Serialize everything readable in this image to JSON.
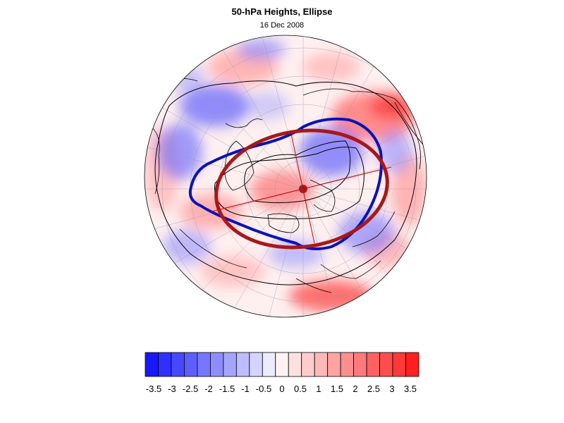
{
  "title": "50-hPa Heights, Ellipse",
  "date": "16 Dec 2008",
  "colors": {
    "blue_ellipse": "#0a12b8",
    "red_ellipse": "#a81818",
    "axis_line": "#cc0000",
    "coast": "#000000",
    "grid": "#9a9ab0"
  },
  "colorbar": {
    "colors": [
      "#1818ff",
      "#2f2fff",
      "#4747ff",
      "#5e5eff",
      "#7676ff",
      "#8d8dff",
      "#a5a5ff",
      "#bcbcff",
      "#d4d4ff",
      "#ececff",
      "#fff2f2",
      "#ffe0e0",
      "#ffcccc",
      "#ffb8b8",
      "#ffa3a3",
      "#ff8f8f",
      "#ff7a7a",
      "#ff6161",
      "#ff4d4d",
      "#ff3838",
      "#ff1f1f"
    ],
    "labels": [
      "-3.5",
      "-3",
      "-2.5",
      "-2",
      "-1.5",
      "-1",
      "-0.5",
      "0",
      "0.5",
      "1",
      "1.5",
      "2",
      "2.5",
      "3",
      "3.5"
    ]
  }
}
